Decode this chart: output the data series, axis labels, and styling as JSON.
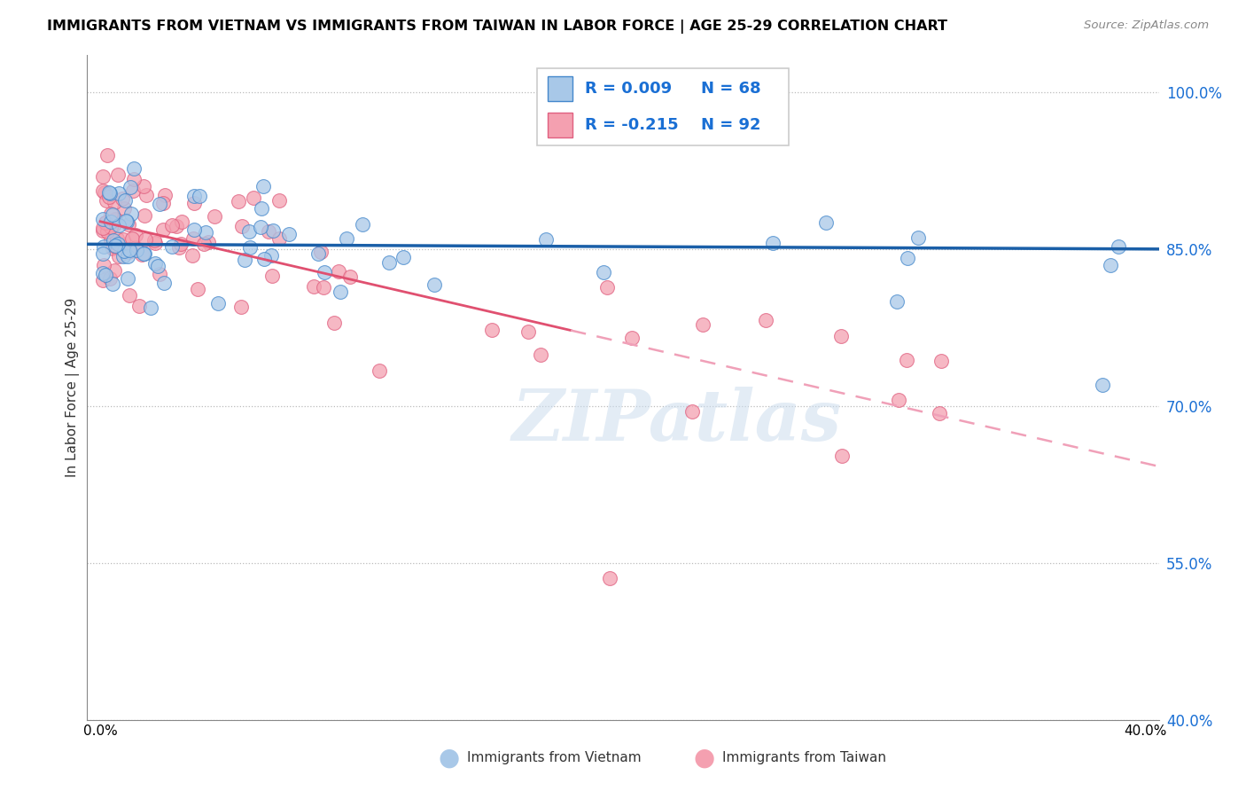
{
  "title": "IMMIGRANTS FROM VIETNAM VS IMMIGRANTS FROM TAIWAN IN LABOR FORCE | AGE 25-29 CORRELATION CHART",
  "source": "Source: ZipAtlas.com",
  "ylabel": "In Labor Force | Age 25-29",
  "xlim": [
    -0.005,
    0.405
  ],
  "ylim": [
    0.4,
    1.035
  ],
  "yticks": [
    0.4,
    0.55,
    0.7,
    0.85,
    1.0
  ],
  "ytick_labels": [
    "40.0%",
    "55.0%",
    "70.0%",
    "85.0%",
    "100.0%"
  ],
  "xticks": [
    0.0,
    0.05,
    0.1,
    0.15,
    0.2,
    0.25,
    0.3,
    0.35,
    0.4
  ],
  "xtick_labels": [
    "0.0%",
    "",
    "",
    "",
    "",
    "",
    "",
    "",
    "40.0%"
  ],
  "vietnam_color": "#a8c8e8",
  "taiwan_color": "#f4a0b0",
  "vietnam_edge_color": "#4488cc",
  "taiwan_edge_color": "#e06080",
  "trend_vietnam_color": "#1a5fa8",
  "trend_taiwan_color_solid": "#e05070",
  "trend_taiwan_color_dashed": "#f0a0b8",
  "r_vietnam": 0.009,
  "n_vietnam": 68,
  "r_taiwan": -0.215,
  "n_taiwan": 92,
  "watermark": "ZIPatlas",
  "legend_label_color": "#1a6fd4",
  "legend_r_color": "#1a6fd4",
  "legend_n_color": "#1a6fd4"
}
